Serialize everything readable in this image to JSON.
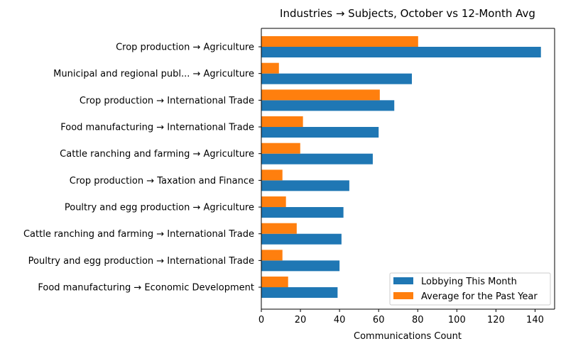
{
  "chart_data": {
    "type": "bar",
    "orientation": "horizontal",
    "title": "Industries → Subjects, October vs 12-Month Avg",
    "xlabel": "Communications Count",
    "ylabel": "",
    "xlim": [
      0,
      150
    ],
    "xticks": [
      0,
      20,
      40,
      60,
      80,
      100,
      120,
      140
    ],
    "grid": false,
    "legend_position": "lower-right",
    "categories": [
      "Crop production → Agriculture",
      "Municipal and regional publ... → Agriculture",
      "Crop production → International Trade",
      "Food manufacturing → International Trade",
      "Cattle ranching and farming → Agriculture",
      "Crop production → Taxation and Finance",
      "Poultry and egg production → Agriculture",
      "Cattle ranching and farming → International Trade",
      "Poultry and egg production → International Trade",
      "Food manufacturing → Economic Development"
    ],
    "series": [
      {
        "name": "Lobbying This Month",
        "color": "#1f77b4",
        "values": [
          143,
          77,
          68,
          60,
          57,
          45,
          42,
          41,
          40,
          39
        ]
      },
      {
        "name": "Average for the Past Year",
        "color": "#ff7f0e",
        "values": [
          80.2,
          9.0,
          60.6,
          21.3,
          19.9,
          10.8,
          12.6,
          18.1,
          10.8,
          13.7
        ]
      }
    ]
  }
}
